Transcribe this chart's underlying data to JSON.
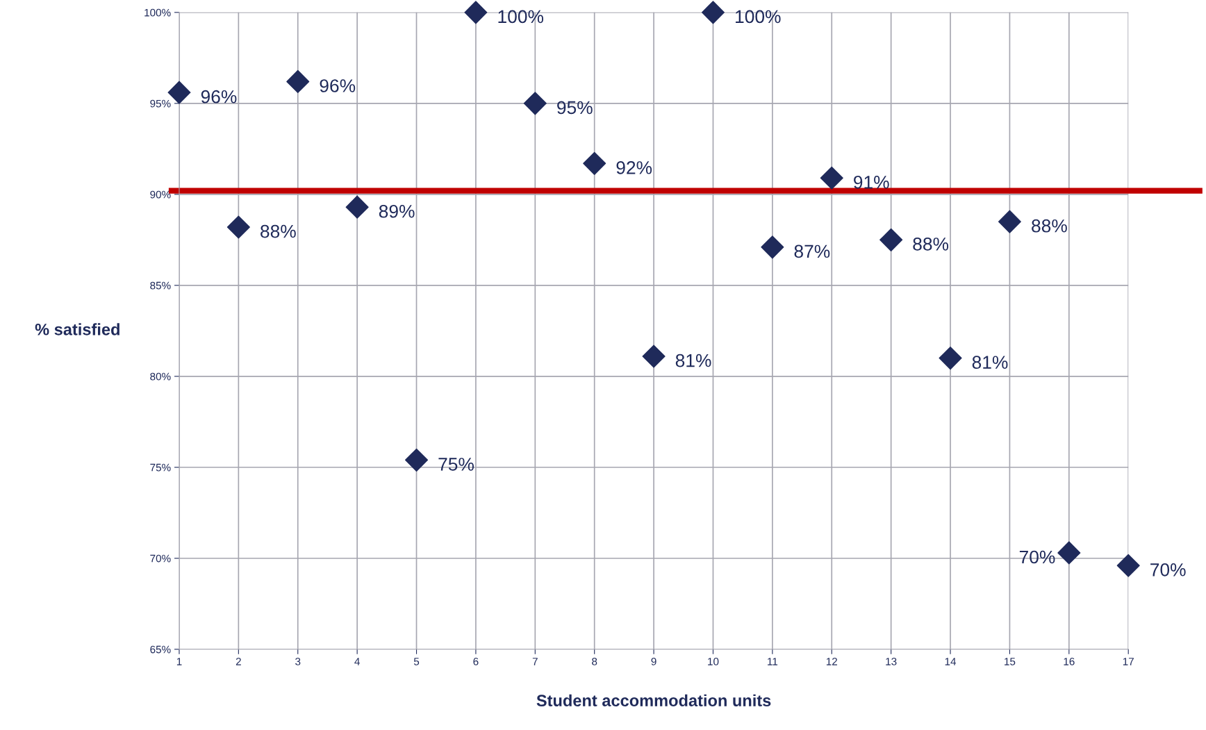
{
  "chart_data": {
    "type": "scatter",
    "xlabel": "Student accommodation units",
    "ylabel": "% satisfied",
    "x": [
      1,
      2,
      3,
      4,
      5,
      6,
      7,
      8,
      9,
      10,
      11,
      12,
      13,
      14,
      15,
      16,
      17
    ],
    "series": [
      {
        "color": "#1f2a5a",
        "values": [
          95.6,
          88.2,
          96.2,
          89.3,
          75.4,
          100,
          95.0,
          91.7,
          81.1,
          100,
          87.1,
          90.9,
          87.5,
          81.0,
          88.5,
          70.3,
          69.6
        ],
        "value_labels": [
          "96%",
          "88%",
          "96%",
          "89%",
          "75%",
          "100%",
          "95%",
          "92%",
          "81%",
          "100%",
          "87%",
          "91%",
          "88%",
          "81%",
          "88%",
          "70%",
          "70%"
        ]
      }
    ],
    "xlim": [
      1,
      17
    ],
    "xticks": [
      1,
      2,
      3,
      4,
      5,
      6,
      7,
      8,
      9,
      10,
      11,
      12,
      13,
      14,
      15,
      16,
      17
    ],
    "ylim": [
      65,
      100
    ],
    "yticks": [
      {
        "value": 65,
        "label": "65%"
      },
      {
        "value": 70,
        "label": "70%"
      },
      {
        "value": 75,
        "label": "75%"
      },
      {
        "value": 80,
        "label": "80%"
      },
      {
        "value": 85,
        "label": "85%"
      },
      {
        "value": 90,
        "label": "90%"
      },
      {
        "value": 95,
        "label": "95%"
      },
      {
        "value": 100,
        "label": "100%"
      }
    ],
    "ref_lines": [
      {
        "axis": "y",
        "value": 90.2,
        "color": "#c00000"
      }
    ],
    "grid": true,
    "marker": "diamond",
    "legend": false
  }
}
